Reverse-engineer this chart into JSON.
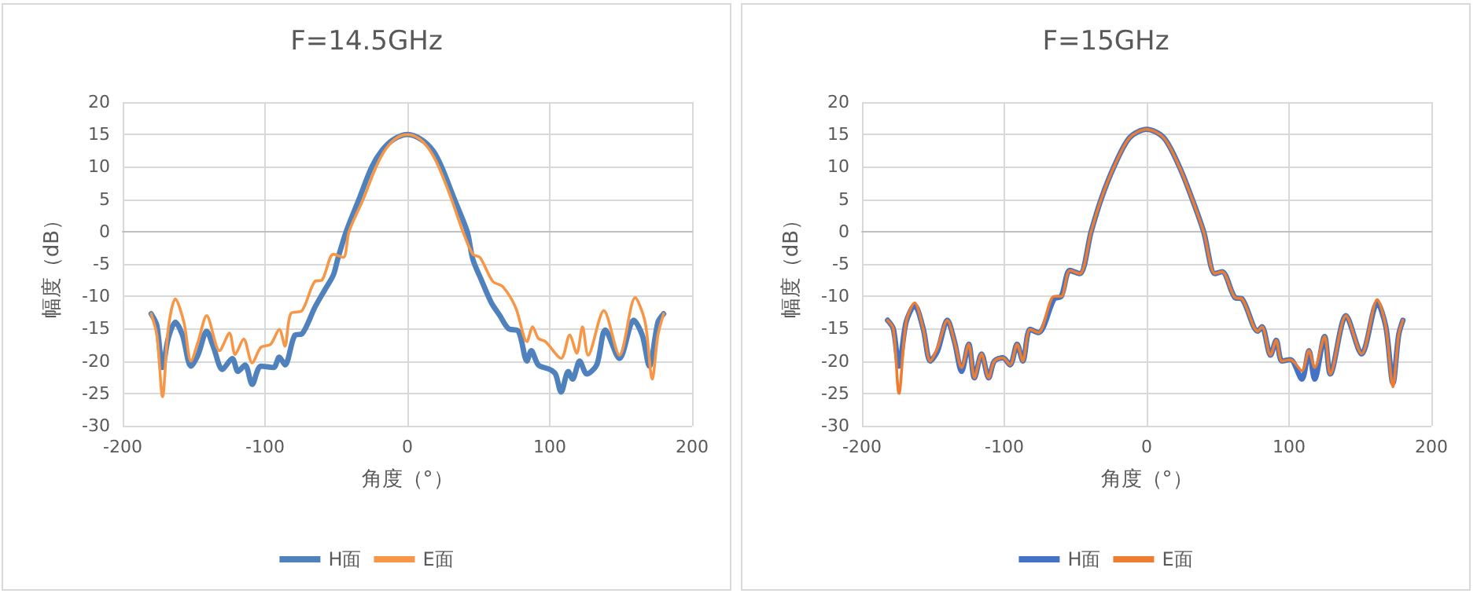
{
  "chart_data": [
    {
      "type": "line",
      "title": "F=14.5GHz",
      "xlabel": "角度（°）",
      "ylabel": "幅度（dB）",
      "xlim": [
        -200,
        200
      ],
      "xticks": [
        -200,
        -100,
        0,
        100,
        200
      ],
      "ylim": [
        -30,
        20
      ],
      "yticks": [
        -30,
        -25,
        -20,
        -15,
        -10,
        -5,
        0,
        5,
        10,
        15,
        20
      ],
      "grid": true,
      "legend": "bottom",
      "series": [
        {
          "name": "H面",
          "color": "#4f81bd",
          "x": [
            -180,
            -176,
            -172,
            -168,
            -163,
            -158,
            -152,
            -147,
            -141,
            -136,
            -130,
            -123,
            -119,
            -114,
            -109,
            -103,
            -94,
            -90,
            -86,
            -79,
            -74,
            -65,
            -58,
            -52,
            -49,
            -43,
            -34,
            -25,
            -18,
            -10,
            0,
            10,
            18,
            24,
            33,
            42,
            46,
            52,
            59,
            65,
            71,
            78,
            84,
            87,
            92,
            100,
            104,
            108,
            113,
            116,
            121,
            126,
            133,
            139,
            149,
            159,
            165,
            170,
            176,
            180
          ],
          "values": [
            -12.7,
            -14.5,
            -21,
            -16.5,
            -14,
            -16,
            -20.8,
            -19,
            -15.4,
            -18,
            -21.3,
            -19.6,
            -21.6,
            -20.6,
            -23.6,
            -20.8,
            -21,
            -19.4,
            -20.6,
            -16,
            -15.8,
            -11.7,
            -9,
            -6.7,
            -4.3,
            0,
            5,
            10,
            12.5,
            14.2,
            15,
            14.2,
            12.5,
            10,
            5,
            0,
            -4.3,
            -7.5,
            -11,
            -13,
            -15,
            -15.4,
            -20,
            -18.4,
            -20.6,
            -21.3,
            -22,
            -24.8,
            -21.6,
            -22.8,
            -20,
            -22,
            -20.6,
            -15.2,
            -19.6,
            -13.7,
            -16,
            -20.8,
            -14,
            -12.7
          ]
        },
        {
          "name": "E面",
          "color": "#f79646",
          "x": [
            -180,
            -176,
            -172,
            -168,
            -163,
            -157,
            -152,
            -147,
            -141,
            -132,
            -125,
            -121,
            -115,
            -109,
            -103,
            -96,
            -90,
            -86,
            -82,
            -74,
            -65,
            -60,
            -52,
            -45,
            -41,
            -31,
            -22,
            -15,
            -8,
            0,
            8,
            15,
            22,
            31,
            39,
            46,
            51,
            60,
            67,
            76,
            84,
            88,
            92,
            97,
            108,
            114,
            119,
            123,
            127,
            138,
            149,
            160,
            167,
            172,
            176,
            180
          ],
          "values": [
            -12.7,
            -16,
            -25.5,
            -15,
            -10.4,
            -14,
            -20,
            -17,
            -13,
            -18.4,
            -15.7,
            -19,
            -16.6,
            -20.3,
            -17.9,
            -17.4,
            -15.1,
            -17.7,
            -12.7,
            -12.2,
            -7.7,
            -7.5,
            -3.5,
            -4,
            0,
            5,
            10,
            12.8,
            14.4,
            15,
            14.4,
            12.8,
            10,
            5,
            0,
            -3.5,
            -4,
            -7.7,
            -8.5,
            -11.7,
            -17,
            -14.7,
            -16.5,
            -17,
            -19.6,
            -16,
            -18.8,
            -14.7,
            -19.1,
            -12.2,
            -19.1,
            -10.2,
            -14,
            -22.8,
            -16,
            -12.7
          ]
        }
      ]
    },
    {
      "type": "line",
      "title": "F=15GHz",
      "xlabel": "角度（°）",
      "ylabel": "幅度（dB）",
      "xlim": [
        -200,
        200
      ],
      "xticks": [
        -200,
        -100,
        0,
        100,
        200
      ],
      "ylim": [
        -30,
        20
      ],
      "yticks": [
        -30,
        -25,
        -20,
        -15,
        -10,
        -5,
        0,
        5,
        10,
        15,
        20
      ],
      "grid": true,
      "legend": "bottom",
      "series": [
        {
          "name": "H面",
          "color": "#4472c4",
          "x": [
            -182,
            -178,
            -174,
            -169,
            -163,
            -157,
            -152,
            -147,
            -140,
            -135,
            -130,
            -125,
            -121,
            -116,
            -111,
            -107,
            -101,
            -96,
            -91,
            -87,
            -82,
            -76,
            -65,
            -60,
            -54,
            -47,
            -39,
            -32,
            -23,
            -12,
            0,
            12,
            23,
            32,
            40,
            48,
            53,
            62,
            67,
            78,
            81,
            87,
            91,
            95,
            101,
            109,
            114,
            118,
            125,
            129,
            140,
            151,
            162,
            168,
            173,
            177,
            180
          ],
          "values": [
            -13.7,
            -15,
            -20.8,
            -14,
            -11.4,
            -15,
            -20,
            -18.5,
            -13.7,
            -17,
            -21.6,
            -17.4,
            -22.6,
            -18.9,
            -22.6,
            -20,
            -19.5,
            -20.6,
            -17.4,
            -20,
            -15.1,
            -15.6,
            -10.4,
            -10,
            -6,
            -6.5,
            0,
            5,
            10,
            14.5,
            15.8,
            14.5,
            10,
            5,
            0,
            -6.5,
            -6.2,
            -10.2,
            -10.4,
            -15.4,
            -14.7,
            -19.1,
            -16.8,
            -20,
            -19.8,
            -22.8,
            -18.4,
            -22.8,
            -16.2,
            -22,
            -13,
            -18.9,
            -11,
            -14.7,
            -23.4,
            -16,
            -13.7
          ]
        },
        {
          "name": "E面",
          "color": "#ed7d31",
          "x": [
            -182,
            -178,
            -174,
            -169,
            -163,
            -157,
            -152,
            -147,
            -140,
            -135,
            -130,
            -125,
            -121,
            -116,
            -111,
            -107,
            -101,
            -96,
            -91,
            -87,
            -82,
            -76,
            -65,
            -60,
            -54,
            -47,
            -39,
            -32,
            -23,
            -12,
            0,
            12,
            23,
            32,
            40,
            48,
            53,
            62,
            67,
            78,
            81,
            87,
            91,
            95,
            101,
            109,
            114,
            118,
            125,
            129,
            140,
            151,
            162,
            168,
            173,
            177,
            180
          ],
          "values": [
            -13.7,
            -15,
            -25,
            -14,
            -11,
            -15,
            -20,
            -18,
            -13.7,
            -17,
            -21,
            -17.4,
            -22.6,
            -18.9,
            -22.6,
            -20,
            -19.5,
            -20.6,
            -17.4,
            -20,
            -15.1,
            -15.6,
            -10,
            -10,
            -6,
            -6.5,
            0,
            5,
            10,
            14.5,
            15.8,
            14.5,
            10,
            5,
            0,
            -6.5,
            -6.2,
            -10.2,
            -10.4,
            -15.4,
            -14.7,
            -19.1,
            -16.8,
            -20,
            -19.8,
            -21.5,
            -18.4,
            -21,
            -16.2,
            -22,
            -13,
            -18.9,
            -10.5,
            -14.7,
            -24,
            -16,
            -13.7
          ]
        }
      ]
    }
  ]
}
